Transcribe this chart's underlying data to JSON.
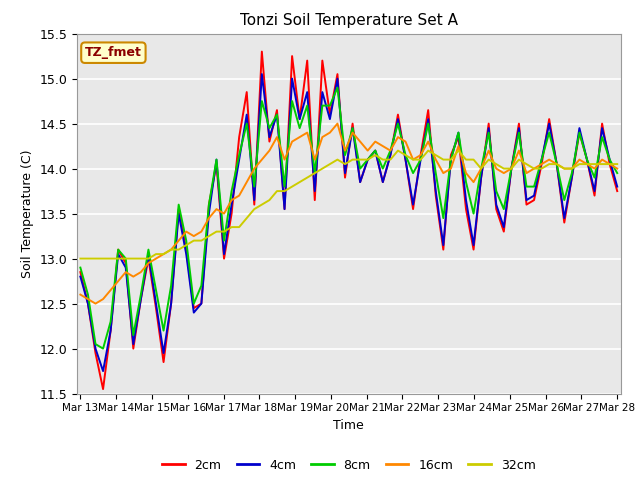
{
  "title": "Tonzi Soil Temperature Set A",
  "xlabel": "Time",
  "ylabel": "Soil Temperature (C)",
  "ylim": [
    11.5,
    15.5
  ],
  "annotation": "TZ_fmet",
  "bg_color": "#e8e8e8",
  "grid_color": "#ffffff",
  "legend_items": [
    "2cm",
    "4cm",
    "8cm",
    "16cm",
    "32cm"
  ],
  "legend_colors": [
    "#ff0000",
    "#0000cc",
    "#00cc00",
    "#ff8800",
    "#cccc00"
  ],
  "line_width": 1.4,
  "x_tick_labels": [
    "Mar 13",
    "Mar 14",
    "Mar 15",
    "Mar 16",
    "Mar 17",
    "Mar 18",
    "Mar 19",
    "Mar 20",
    "Mar 21",
    "Mar 22",
    "Mar 23",
    "Mar 24",
    "Mar 25",
    "Mar 26",
    "Mar 27",
    "Mar 28"
  ],
  "series": {
    "2cm": [
      12.85,
      12.5,
      11.95,
      11.55,
      12.2,
      13.1,
      12.95,
      12.0,
      12.55,
      13.0,
      12.45,
      11.85,
      12.5,
      13.55,
      13.1,
      12.45,
      12.5,
      13.6,
      14.05,
      13.0,
      13.5,
      14.35,
      14.85,
      13.6,
      15.3,
      14.3,
      14.65,
      13.55,
      15.25,
      14.55,
      15.2,
      13.65,
      15.2,
      14.6,
      15.05,
      13.9,
      14.5,
      13.85,
      14.1,
      14.2,
      13.85,
      14.15,
      14.6,
      14.1,
      13.55,
      14.15,
      14.65,
      13.7,
      13.1,
      14.15,
      14.35,
      13.55,
      13.1,
      13.9,
      14.5,
      13.55,
      13.3,
      14.0,
      14.5,
      13.6,
      13.65,
      14.05,
      14.55,
      14.05,
      13.4,
      13.9,
      14.4,
      14.1,
      13.7,
      14.5,
      14.05,
      13.75
    ],
    "4cm": [
      12.8,
      12.5,
      12.0,
      11.75,
      12.2,
      13.05,
      12.9,
      12.05,
      12.55,
      13.05,
      12.5,
      11.95,
      12.5,
      13.5,
      13.05,
      12.4,
      12.5,
      13.5,
      14.1,
      13.05,
      13.6,
      14.1,
      14.6,
      13.65,
      15.05,
      14.35,
      14.6,
      13.55,
      15.0,
      14.55,
      14.85,
      13.75,
      14.85,
      14.55,
      15.0,
      13.95,
      14.45,
      13.85,
      14.1,
      14.2,
      13.85,
      14.15,
      14.55,
      14.1,
      13.6,
      14.1,
      14.55,
      13.75,
      13.15,
      14.1,
      14.4,
      13.65,
      13.15,
      13.9,
      14.45,
      13.6,
      13.35,
      14.0,
      14.45,
      13.65,
      13.7,
      14.1,
      14.5,
      14.05,
      13.45,
      13.9,
      14.45,
      14.1,
      13.75,
      14.45,
      14.1,
      13.8
    ],
    "8cm": [
      12.9,
      12.6,
      12.05,
      12.0,
      12.3,
      13.1,
      13.0,
      12.15,
      12.6,
      13.1,
      12.65,
      12.2,
      12.7,
      13.6,
      13.2,
      12.5,
      12.7,
      13.6,
      14.1,
      13.2,
      13.75,
      14.15,
      14.5,
      13.8,
      14.75,
      14.45,
      14.6,
      13.8,
      14.75,
      14.45,
      14.7,
      13.95,
      14.7,
      14.7,
      14.9,
      14.15,
      14.45,
      14.0,
      14.1,
      14.2,
      14.0,
      14.2,
      14.5,
      14.15,
      13.95,
      14.1,
      14.5,
      13.95,
      13.45,
      14.1,
      14.4,
      13.85,
      13.5,
      14.0,
      14.4,
      13.75,
      13.55,
      14.0,
      14.4,
      13.8,
      13.8,
      14.1,
      14.4,
      14.05,
      13.65,
      13.95,
      14.4,
      14.1,
      13.9,
      14.35,
      14.1,
      13.95
    ],
    "16cm": [
      12.6,
      12.55,
      12.5,
      12.55,
      12.65,
      12.75,
      12.85,
      12.8,
      12.85,
      12.95,
      13.0,
      13.05,
      13.1,
      13.2,
      13.3,
      13.25,
      13.3,
      13.45,
      13.55,
      13.5,
      13.65,
      13.7,
      13.85,
      14.0,
      14.1,
      14.2,
      14.35,
      14.1,
      14.3,
      14.35,
      14.4,
      14.1,
      14.35,
      14.4,
      14.5,
      14.2,
      14.4,
      14.3,
      14.2,
      14.3,
      14.25,
      14.2,
      14.35,
      14.3,
      14.1,
      14.15,
      14.3,
      14.1,
      13.95,
      14.0,
      14.25,
      13.95,
      13.85,
      14.0,
      14.2,
      14.0,
      13.95,
      14.0,
      14.2,
      13.95,
      14.0,
      14.05,
      14.1,
      14.05,
      14.0,
      14.0,
      14.1,
      14.05,
      14.0,
      14.1,
      14.05,
      14.0
    ],
    "32cm": [
      13.0,
      13.0,
      13.0,
      13.0,
      13.0,
      13.0,
      13.0,
      13.0,
      13.0,
      13.0,
      13.05,
      13.05,
      13.1,
      13.1,
      13.15,
      13.2,
      13.2,
      13.25,
      13.3,
      13.3,
      13.35,
      13.35,
      13.45,
      13.55,
      13.6,
      13.65,
      13.75,
      13.75,
      13.8,
      13.85,
      13.9,
      13.95,
      14.0,
      14.05,
      14.1,
      14.05,
      14.1,
      14.1,
      14.1,
      14.15,
      14.1,
      14.1,
      14.2,
      14.15,
      14.1,
      14.1,
      14.2,
      14.15,
      14.1,
      14.1,
      14.2,
      14.1,
      14.1,
      14.0,
      14.1,
      14.05,
      14.0,
      14.0,
      14.1,
      14.05,
      14.0,
      14.0,
      14.05,
      14.05,
      14.0,
      14.0,
      14.05,
      14.05,
      14.05,
      14.05,
      14.05,
      14.05
    ]
  }
}
